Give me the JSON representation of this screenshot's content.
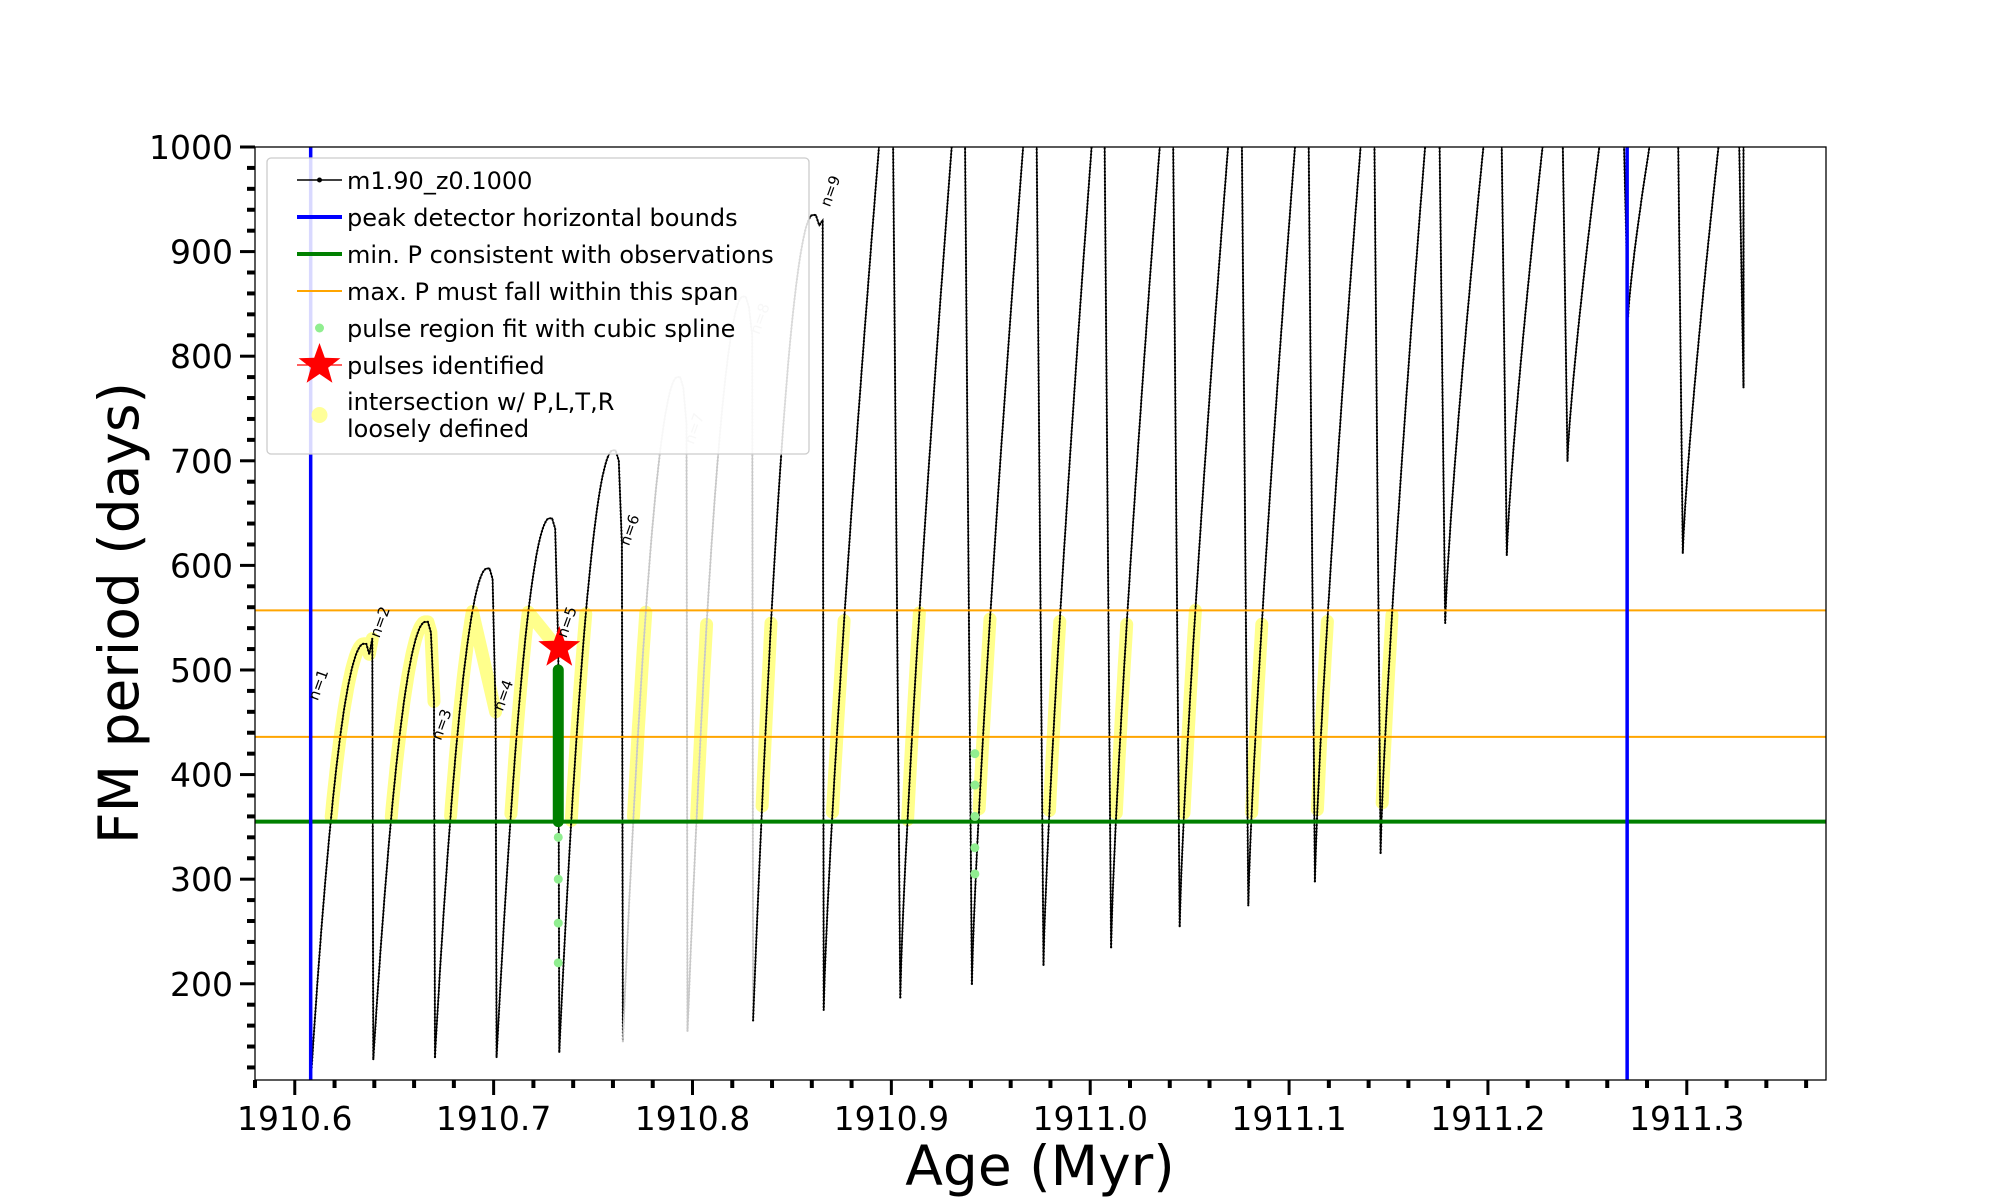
{
  "chart_data": {
    "type": "scatter",
    "xlabel": "Age (Myr)",
    "ylabel": "FM period (days)",
    "xlim": [
      1910.58,
      1911.37
    ],
    "ylim": [
      108,
      1000
    ],
    "x_ticks": [
      1910.6,
      1910.7,
      1910.8,
      1910.9,
      1911.0,
      1911.1,
      1911.2,
      1911.3
    ],
    "x_tick_labels": [
      "1910.6",
      "1910.7",
      "1910.8",
      "1910.9",
      "1911.0",
      "1911.1",
      "1911.2",
      "1911.3"
    ],
    "y_ticks": [
      200,
      300,
      400,
      500,
      600,
      700,
      800,
      900,
      1000
    ],
    "y_tick_labels": [
      "200",
      "300",
      "400",
      "500",
      "600",
      "700",
      "800",
      "900",
      "1000"
    ],
    "legend": {
      "position": "upper-left",
      "entries": [
        {
          "label": "m1.90_z0.1000",
          "kind": "line-marker",
          "color": "#000000"
        },
        {
          "label": "peak detector horizontal bounds",
          "kind": "line",
          "color": "#0000ff"
        },
        {
          "label": "min. P consistent with observations",
          "kind": "line",
          "color": "#008000"
        },
        {
          "label": "max. P must fall within this span",
          "kind": "line",
          "color": "#ffa500"
        },
        {
          "label": "pulse region fit with cubic spline",
          "kind": "dot",
          "color": "#90ee90"
        },
        {
          "label": "pulses identified",
          "kind": "star",
          "color": "#ff0000"
        },
        {
          "label": "intersection w/ P,L,T,R",
          "label2": "loosely defined",
          "kind": "dot",
          "color": "#ffff99"
        }
      ]
    },
    "vertical_lines": [
      {
        "name": "peak detector horizontal bounds",
        "x": 1910.608,
        "color": "#0000ff"
      },
      {
        "name": "peak detector horizontal bounds",
        "x": 1911.27,
        "color": "#0000ff"
      }
    ],
    "horizontal_lines": [
      {
        "name": "min. P consistent with observations",
        "y": 355,
        "color": "#008000"
      },
      {
        "name": "max. P must fall within this span",
        "y": 436,
        "color": "#ffa500"
      },
      {
        "name": "max. P must fall within this span",
        "y": 557,
        "color": "#ffa500"
      }
    ],
    "series": [
      {
        "name": "m1.90_z0.1000",
        "color": "#000000",
        "pulses": [
          {
            "t_start": 1910.6085,
            "t_end": 1910.639,
            "p_min": 120,
            "p_peak": 525,
            "p_end": 530,
            "shade": "#000000"
          },
          {
            "t_start": 1910.6395,
            "t_end": 1910.67,
            "p_min": 128,
            "p_peak": 546,
            "p_end": 470,
            "shade": "#000000"
          },
          {
            "t_start": 1910.6705,
            "t_end": 1910.701,
            "p_min": 130,
            "p_peak": 597,
            "p_end": 460,
            "shade": "#000000"
          },
          {
            "t_start": 1910.7015,
            "t_end": 1910.7325,
            "p_min": 130,
            "p_peak": 645,
            "p_end": 520,
            "shade": "#000000"
          },
          {
            "t_start": 1910.733,
            "t_end": 1910.7645,
            "p_min": 135,
            "p_peak": 710,
            "p_end": 620,
            "shade": "#000000"
          },
          {
            "t_start": 1910.765,
            "t_end": 1910.797,
            "p_min": 145,
            "p_peak": 780,
            "p_end": 735,
            "shade": "#c8c8c8"
          },
          {
            "t_start": 1910.7975,
            "t_end": 1910.83,
            "p_min": 155,
            "p_peak": 857,
            "p_end": 820,
            "shade": "#c8c8c8"
          },
          {
            "t_start": 1910.8305,
            "t_end": 1910.8655,
            "p_min": 165,
            "p_peak": 935,
            "p_end": 930,
            "shade": "#000000"
          },
          {
            "t_start": 1910.866,
            "t_end": 1910.904,
            "p_min": 175,
            "p_peak": 1000,
            "p_end": 1000,
            "shade": "#000000"
          },
          {
            "t_start": 1910.9045,
            "t_end": 1910.94,
            "p_min": 187,
            "p_peak": 1000,
            "p_end": 1000,
            "shade": "#000000"
          },
          {
            "t_start": 1910.9405,
            "t_end": 1910.976,
            "p_min": 200,
            "p_peak": 1000,
            "p_end": 1000,
            "shade": "#000000"
          },
          {
            "t_start": 1910.9765,
            "t_end": 1911.01,
            "p_min": 218,
            "p_peak": 1000,
            "p_end": 1000,
            "shade": "#000000"
          },
          {
            "t_start": 1911.0105,
            "t_end": 1911.0445,
            "p_min": 235,
            "p_peak": 1000,
            "p_end": 1000,
            "shade": "#000000"
          },
          {
            "t_start": 1911.045,
            "t_end": 1911.079,
            "p_min": 255,
            "p_peak": 1000,
            "p_end": 1000,
            "shade": "#000000"
          },
          {
            "t_start": 1911.0795,
            "t_end": 1911.1125,
            "p_min": 275,
            "p_peak": 1000,
            "p_end": 1000,
            "shade": "#000000"
          },
          {
            "t_start": 1911.113,
            "t_end": 1911.1455,
            "p_min": 298,
            "p_peak": 1000,
            "p_end": 1000,
            "shade": "#000000"
          },
          {
            "t_start": 1911.146,
            "t_end": 1911.178,
            "p_min": 325,
            "p_peak": 1000,
            "p_end": 1000,
            "shade": "#000000"
          },
          {
            "t_start": 1911.1785,
            "t_end": 1911.209,
            "p_min": 545,
            "p_peak": 1000,
            "p_end": 1000,
            "shade": "#000000"
          },
          {
            "t_start": 1911.2095,
            "t_end": 1911.2395,
            "p_min": 610,
            "p_peak": 1000,
            "p_end": 1000,
            "shade": "#000000"
          },
          {
            "t_start": 1911.24,
            "t_end": 1911.2695,
            "p_min": 700,
            "p_peak": 1000,
            "p_end": 1000,
            "shade": "#000000"
          },
          {
            "t_start": 1911.2705,
            "t_end": 1911.2975,
            "p_min": 838,
            "p_peak": 1000,
            "p_end": 1000,
            "shade": "#000000"
          },
          {
            "t_start": 1911.298,
            "t_end": 1911.328,
            "p_min": 612,
            "p_peak": 1000,
            "p_end": 1000,
            "shade": "#000000"
          },
          {
            "t_start": 1911.3285,
            "t_end": 1911.3285,
            "p_min": 770,
            "p_peak": 1000,
            "p_end": 940,
            "shade": "#000000"
          }
        ]
      },
      {
        "name": "pulse region fit with cubic spline",
        "color": "#90ee90",
        "points": [
          [
            1910.7325,
            220
          ],
          [
            1910.7325,
            258
          ],
          [
            1910.7325,
            300
          ],
          [
            1910.7325,
            340
          ],
          [
            1910.942,
            305
          ],
          [
            1910.942,
            330
          ],
          [
            1910.942,
            360
          ],
          [
            1910.942,
            390
          ],
          [
            1910.942,
            420
          ]
        ]
      },
      {
        "name": "fit overlay",
        "color": "#008000",
        "segments": [
          {
            "t": 1910.7325,
            "p_low": 355,
            "p_high": 500
          }
        ]
      },
      {
        "name": "pulses identified",
        "color": "#ff0000",
        "points": [
          [
            1910.733,
            521
          ]
        ]
      },
      {
        "name": "intersection w/ P,L,T,R loosely defined",
        "color": "#ffff66",
        "band": [
          355,
          557
        ]
      }
    ],
    "annotations": [
      {
        "text": "n=1",
        "x": 1910.6115,
        "y": 470,
        "color": "#000000"
      },
      {
        "text": "n=2",
        "x": 1910.6425,
        "y": 530,
        "color": "#000000"
      },
      {
        "text": "n=3",
        "x": 1910.6735,
        "y": 432,
        "color": "#000000"
      },
      {
        "text": "n=4",
        "x": 1910.7045,
        "y": 460,
        "color": "#000000"
      },
      {
        "text": "n=5",
        "x": 1910.7365,
        "y": 530,
        "color": "#000000"
      },
      {
        "text": "n=6",
        "x": 1910.768,
        "y": 618,
        "color": "#000000"
      },
      {
        "text": "n=7",
        "x": 1910.8005,
        "y": 715,
        "color": "#c8c8c8"
      },
      {
        "text": "n=8",
        "x": 1910.8335,
        "y": 820,
        "color": "#c8c8c8"
      },
      {
        "text": "n=9",
        "x": 1910.869,
        "y": 942,
        "color": "#000000"
      }
    ]
  }
}
